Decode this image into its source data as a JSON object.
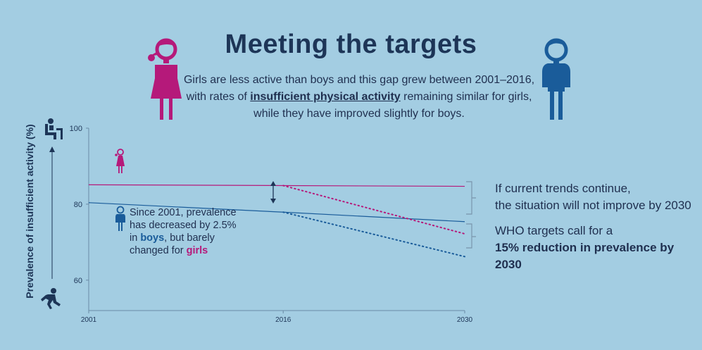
{
  "header": {
    "title": "Meeting the targets",
    "subtitle_part1": "Girls are less active than boys and this gap grew between 2001–2016, with rates of ",
    "subtitle_highlight": "insufficient physical activity",
    "subtitle_part2": " remaining similar for girls, while they have improved slightly for boys."
  },
  "colors": {
    "background": "#a3cde2",
    "girls": "#b5197a",
    "boys": "#1a5c9a",
    "text": "#1d3557",
    "axis": "#6a8aa5"
  },
  "icons": {
    "girl_large": "girl-icon",
    "boy_large": "boy-icon",
    "sitting": "sitting-person-icon",
    "running": "running-person-icon"
  },
  "annotations": {
    "since_2001_a": "Since 2001, prevalence",
    "since_2001_b": "has decreased by 2.5%",
    "since_2001_c_pre": "in ",
    "since_2001_c_boys": "boys",
    "since_2001_c_post": ", but barely",
    "since_2001_d_pre": "changed for ",
    "since_2001_d_girls": "girls",
    "trend_line1": "If current trends continue,",
    "trend_line2": "the situation will not improve by 2030",
    "who_line1": "WHO targets call for a",
    "who_line2": "15% reduction in prevalence by 2030"
  },
  "chart_data": {
    "type": "line",
    "title": "Meeting the targets",
    "ylabel": "Prevalence of insufficient activity (%)",
    "xlabel": "",
    "x_ticks": [
      "2001",
      "2016",
      "2030"
    ],
    "y_ticks": [
      60,
      80,
      100
    ],
    "xlim": [
      2001,
      2030
    ],
    "ylim": [
      52,
      100
    ],
    "series": [
      {
        "name": "girls",
        "style": "solid",
        "color": "#b5197a",
        "x": [
          2001,
          2016,
          2030
        ],
        "y": [
          85.1,
          84.9,
          84.7
        ]
      },
      {
        "name": "boys",
        "style": "solid",
        "color": "#1a5c9a",
        "x": [
          2001,
          2016,
          2030
        ],
        "y": [
          80.4,
          77.9,
          75.4
        ]
      },
      {
        "name": "girls",
        "style": "dotted",
        "color": "#b5197a",
        "x": [
          2016,
          2030
        ],
        "y": [
          84.9,
          72.2
        ]
      },
      {
        "name": "boys",
        "style": "dotted",
        "color": "#1a5c9a",
        "x": [
          2016,
          2030
        ],
        "y": [
          77.9,
          66.2
        ]
      }
    ]
  }
}
